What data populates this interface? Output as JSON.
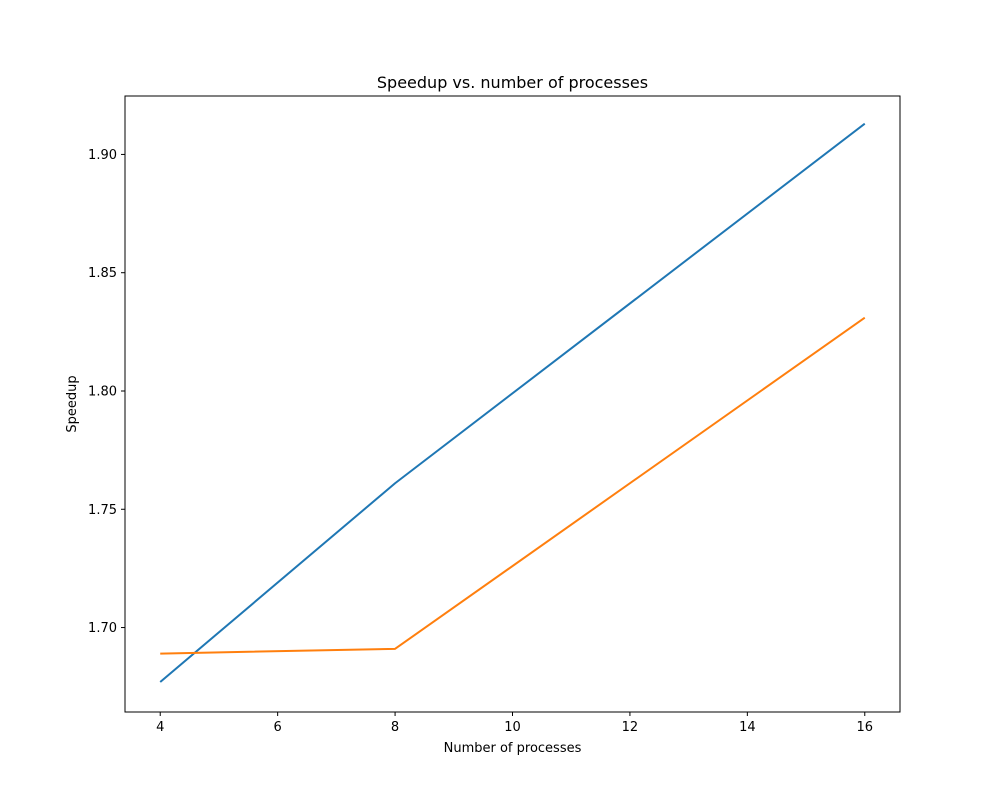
{
  "chart_data": {
    "type": "line",
    "title": "Speedup vs. number of processes",
    "xlabel": "Number of processes",
    "ylabel": "Speedup",
    "xlim": [
      3.4,
      16.6
    ],
    "ylim": [
      1.6643,
      1.9247
    ],
    "xticks": [
      4,
      6,
      8,
      10,
      12,
      14,
      16
    ],
    "xtick_labels": [
      "4",
      "6",
      "8",
      "10",
      "12",
      "14",
      "16"
    ],
    "yticks": [
      1.7,
      1.75,
      1.8,
      1.85,
      1.9
    ],
    "ytick_labels": [
      "1.70",
      "1.75",
      "1.80",
      "1.85",
      "1.90"
    ],
    "grid": false,
    "x": [
      4,
      8,
      16
    ],
    "series": [
      {
        "color": "#1f77b4",
        "values": [
          1.677,
          1.761,
          1.913
        ]
      },
      {
        "color": "#ff7f0e",
        "values": [
          1.689,
          1.691,
          1.831
        ]
      }
    ]
  }
}
